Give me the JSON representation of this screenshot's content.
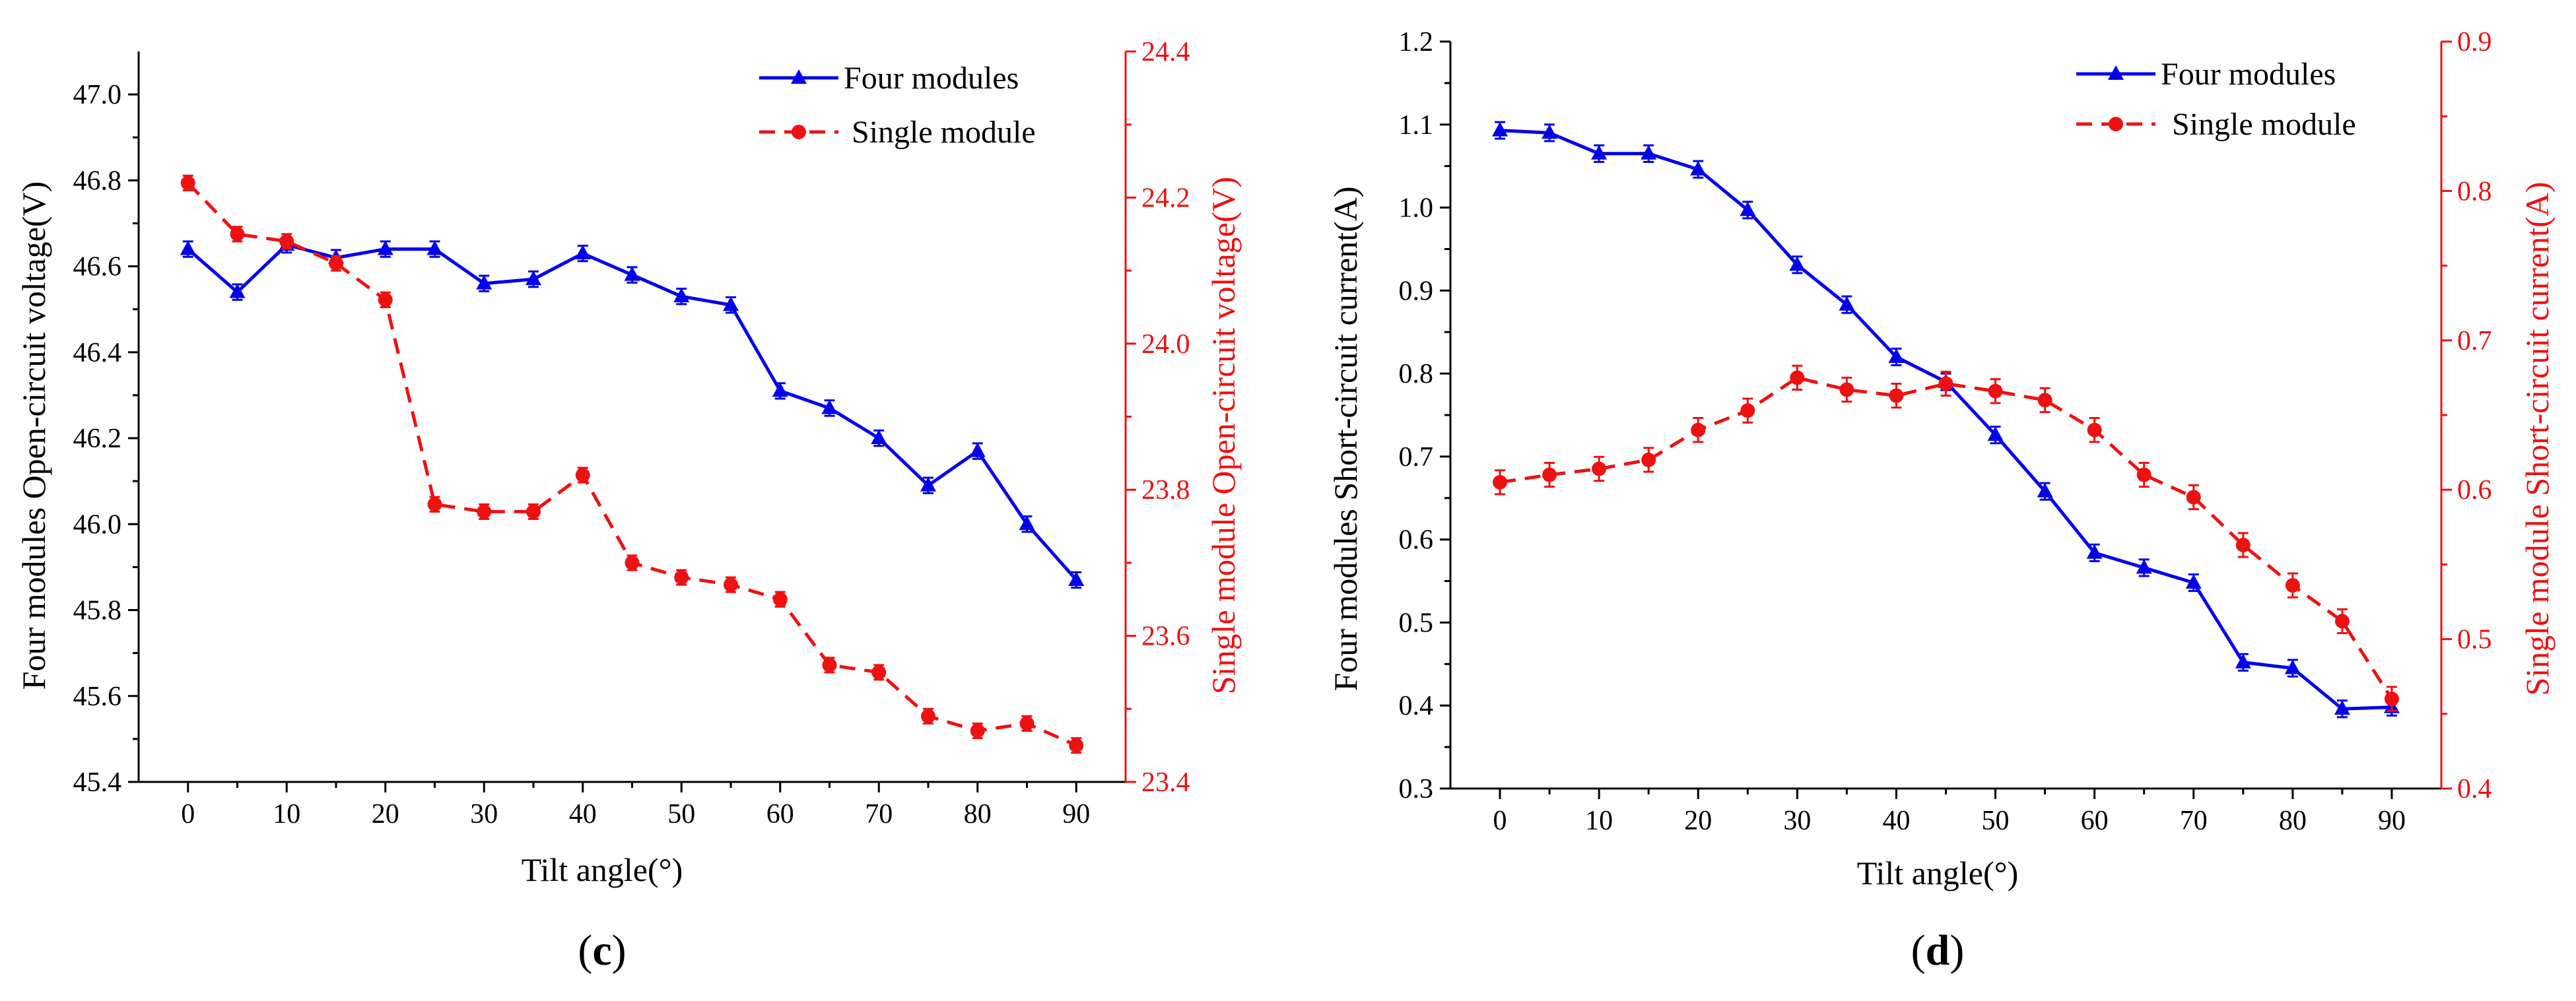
{
  "colors": {
    "four": "#0000ee",
    "single": "#ee1111",
    "axis": "#000000"
  },
  "chart_data": [
    {
      "type": "line",
      "panel_label": "(c)",
      "panel_letter": "c",
      "xlabel": "Tilt angle(°)",
      "ylabel_left": "Four modules Open-circuit voltage(V)",
      "ylabel_right": "Single module Open-circuit voltage(V)",
      "x_ticks": [
        0,
        10,
        20,
        30,
        40,
        50,
        60,
        70,
        80,
        90
      ],
      "xlim": [
        -5,
        95
      ],
      "y_left_lim": [
        45.4,
        47.1
      ],
      "y_left_ticks": [
        "45.4",
        "45.6",
        "45.8",
        "46.0",
        "46.2",
        "46.4",
        "46.6",
        "46.8",
        "47.0"
      ],
      "y_right_lim": [
        23.4,
        24.4
      ],
      "y_right_ticks": [
        "23.4",
        "23.6",
        "23.8",
        "24.0",
        "24.2",
        "24.4"
      ],
      "x": [
        0,
        5,
        10,
        15,
        20,
        25,
        30,
        35,
        40,
        45,
        50,
        55,
        60,
        65,
        70,
        75,
        80,
        85,
        90
      ],
      "series": [
        {
          "name": "Four modules",
          "axis": "left",
          "style": "solid",
          "marker": "triangle",
          "values": [
            46.64,
            46.54,
            46.65,
            46.62,
            46.64,
            46.64,
            46.56,
            46.57,
            46.63,
            46.58,
            46.53,
            46.51,
            46.31,
            46.27,
            46.2,
            46.09,
            46.17,
            46.0,
            45.87
          ],
          "error": 0.018
        },
        {
          "name": "Single module",
          "axis": "right",
          "style": "dashed",
          "marker": "circle",
          "values": [
            24.22,
            24.15,
            24.14,
            24.11,
            24.06,
            23.78,
            23.77,
            23.77,
            23.82,
            23.7,
            23.68,
            23.67,
            23.65,
            23.56,
            23.55,
            23.49,
            23.47,
            23.48,
            23.45
          ],
          "error": 0.01
        }
      ]
    },
    {
      "type": "line",
      "panel_label": "(d)",
      "panel_letter": "d",
      "xlabel": "Tilt angle(°)",
      "ylabel_left": "Four modules Short-circuit current(A)",
      "ylabel_right": "Single module Short-circuit current(A)",
      "x_ticks": [
        0,
        10,
        20,
        30,
        40,
        50,
        60,
        70,
        80,
        90
      ],
      "xlim": [
        -5,
        95
      ],
      "y_left_lim": [
        0.3,
        1.2
      ],
      "y_left_ticks": [
        "0.3",
        "0.4",
        "0.5",
        "0.6",
        "0.7",
        "0.8",
        "0.9",
        "1.0",
        "1.1",
        "1.2"
      ],
      "y_right_lim": [
        0.4,
        0.9
      ],
      "y_right_ticks": [
        "0.4",
        "0.5",
        "0.6",
        "0.7",
        "0.8",
        "0.9"
      ],
      "x": [
        0,
        5,
        10,
        15,
        20,
        25,
        30,
        35,
        40,
        45,
        50,
        55,
        60,
        65,
        70,
        75,
        80,
        85,
        90
      ],
      "series": [
        {
          "name": "Four modules",
          "axis": "left",
          "style": "solid",
          "marker": "triangle",
          "values": [
            1.093,
            1.09,
            1.065,
            1.065,
            1.046,
            0.997,
            0.931,
            0.883,
            0.82,
            0.79,
            0.726,
            0.658,
            0.584,
            0.566,
            0.548,
            0.452,
            0.445,
            0.396,
            0.398
          ],
          "error": 0.01
        },
        {
          "name": "Single module",
          "axis": "right",
          "style": "dashed",
          "marker": "circle",
          "values": [
            0.605,
            0.61,
            0.614,
            0.62,
            0.64,
            0.653,
            0.675,
            0.667,
            0.663,
            0.671,
            0.666,
            0.66,
            0.64,
            0.61,
            0.595,
            0.563,
            0.536,
            0.512,
            0.46
          ],
          "error": 0.008
        }
      ]
    }
  ]
}
